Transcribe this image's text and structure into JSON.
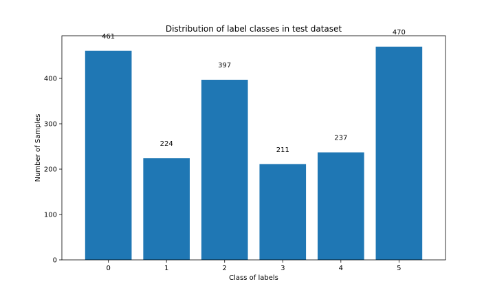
{
  "chart_data": {
    "type": "bar",
    "title": "Distribution of label classes in test dataset",
    "xlabel": "Class of labels",
    "ylabel": "Number of Samples",
    "categories": [
      "0",
      "1",
      "2",
      "3",
      "4",
      "5"
    ],
    "values": [
      461,
      224,
      397,
      211,
      237,
      470
    ],
    "ylim": [
      0,
      494
    ],
    "yticks": [
      0,
      100,
      200,
      300,
      400
    ],
    "grid": false,
    "legend": "none",
    "bar_color": "#1f77b4",
    "show_value_labels": true
  }
}
